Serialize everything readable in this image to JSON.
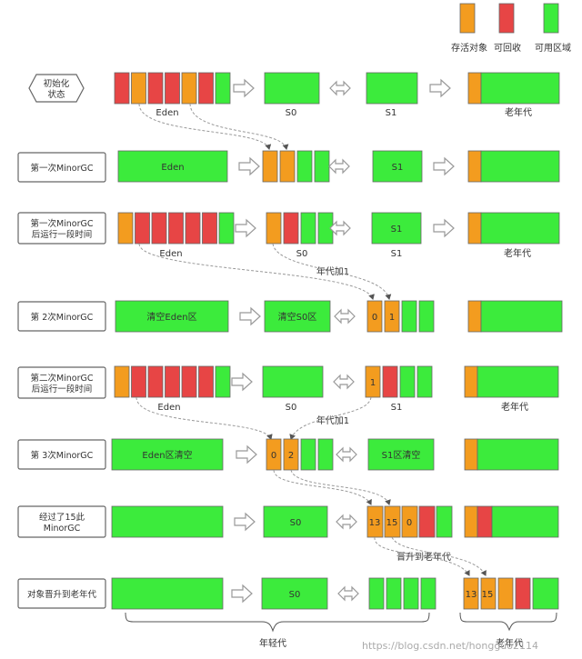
{
  "legend": {
    "items": [
      {
        "label": "存活对象",
        "color": "#F39C1F"
      },
      {
        "label": "可回收",
        "color": "#E74545"
      },
      {
        "label": "可用区域",
        "color": "#3CEB3C"
      }
    ]
  },
  "colors": {
    "survive": "#F39C1F",
    "reclaim": "#E74545",
    "free": "#3CEB3C",
    "stroke": "#666666",
    "arrow": "#999999"
  },
  "steps": [
    {
      "label": "初始化\n状态"
    },
    {
      "label": "第一次MinorGC"
    },
    {
      "label": "第一次MinorGC\n后运行一段时间"
    },
    {
      "label": "第 2次MinorGC"
    },
    {
      "label": "第二次MinorGC\n后运行一段时间"
    },
    {
      "label": "第 3次MinorGC"
    },
    {
      "label": "经过了15此\nMinorGC"
    },
    {
      "label": "对象晋升到老年代"
    }
  ],
  "labels": {
    "eden": "Eden",
    "s0": "S0",
    "s1": "S1",
    "old": "老年代",
    "age_plus_1": "年代加1",
    "clear_eden": "清空Eden区",
    "clear_s0": "清空S0区",
    "eden_clear": "Eden区清空",
    "s1_clear": "S1区清空",
    "promote": "晋升到老年代",
    "young": "年轻代",
    "num_0": "0",
    "num_1": "1",
    "num_2": "2",
    "num_13": "13",
    "num_15": "15"
  },
  "watermark": "https://blog.csdn.net/hongguo2114"
}
